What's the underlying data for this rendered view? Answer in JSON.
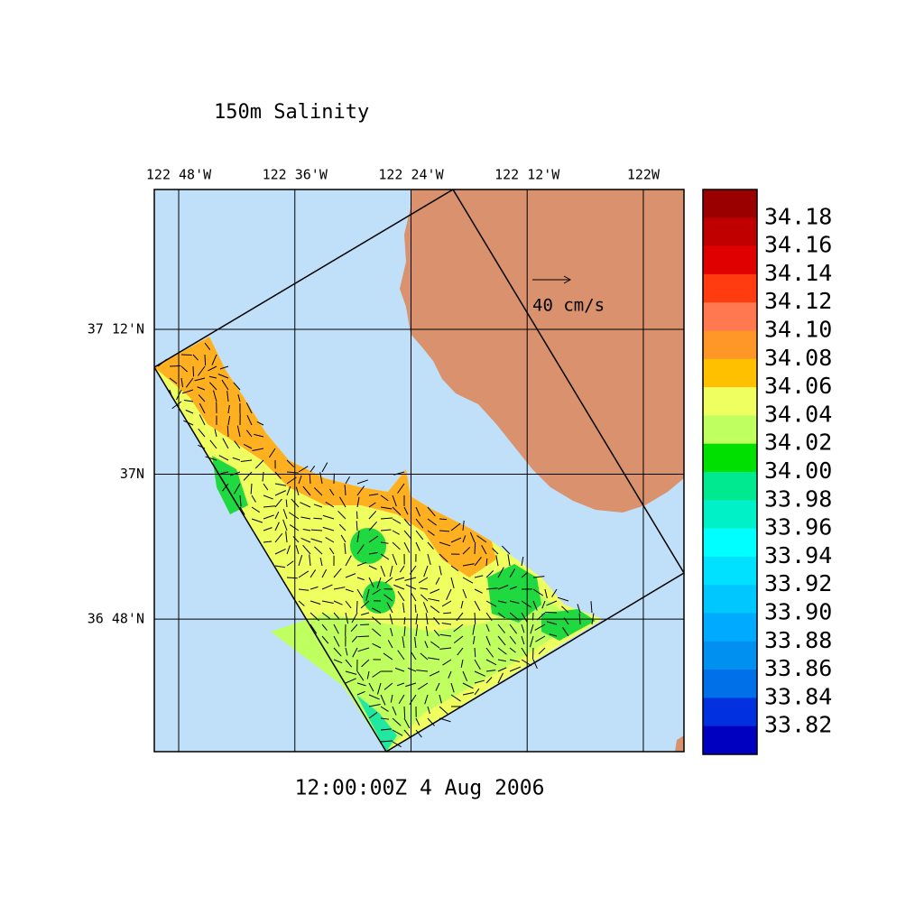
{
  "map": {
    "title": "150m Salinity",
    "timestamp": "12:00:00Z   4 Aug 2006",
    "vector_reference": "40 cm/s",
    "xlim": [
      -122.842,
      -121.93
    ],
    "ylim": [
      36.617,
      37.393
    ],
    "xticks": [
      {
        "value": -122.8,
        "label": "122 48'W"
      },
      {
        "value": -122.6,
        "label": "122 36'W"
      },
      {
        "value": -122.4,
        "label": "122 24'W"
      },
      {
        "value": -122.2,
        "label": "122 12'W"
      },
      {
        "value": -122.0,
        "label": "122W"
      }
    ],
    "yticks": [
      {
        "value": 37.2,
        "label": "37 12'N"
      },
      {
        "value": 37.0,
        "label": "37N"
      },
      {
        "value": 36.8,
        "label": "36 48'N"
      }
    ],
    "colorbar": {
      "levels": [
        {
          "value": 34.18,
          "label": "34.18"
        },
        {
          "value": 34.16,
          "label": "34.16"
        },
        {
          "value": 34.14,
          "label": "34.14"
        },
        {
          "value": 34.12,
          "label": "34.12"
        },
        {
          "value": 34.1,
          "label": "34.10"
        },
        {
          "value": 34.08,
          "label": "34.08"
        },
        {
          "value": 34.06,
          "label": "34.06"
        },
        {
          "value": 34.04,
          "label": "34.04"
        },
        {
          "value": 34.02,
          "label": "34.02"
        },
        {
          "value": 34.0,
          "label": "34.00"
        },
        {
          "value": 33.98,
          "label": "33.98"
        },
        {
          "value": 33.96,
          "label": "33.96"
        },
        {
          "value": 33.94,
          "label": "33.94"
        },
        {
          "value": 33.92,
          "label": "33.92"
        },
        {
          "value": 33.9,
          "label": "33.90"
        },
        {
          "value": 33.88,
          "label": "33.88"
        },
        {
          "value": 33.86,
          "label": "33.86"
        },
        {
          "value": 33.84,
          "label": "33.84"
        },
        {
          "value": 33.82,
          "label": "33.82"
        }
      ],
      "colors": [
        "#9b0000",
        "#c00000",
        "#e00000",
        "#ff3c10",
        "#ff7850",
        "#ff9628",
        "#ffc000",
        "#f0ff60",
        "#c0ff60",
        "#00e000",
        "#00e890",
        "#00f0c8",
        "#00ffff",
        "#00e0ff",
        "#00c8ff",
        "#00aaff",
        "#0090f0",
        "#0070e8",
        "#0030e0",
        "#0000c0"
      ]
    }
  }
}
